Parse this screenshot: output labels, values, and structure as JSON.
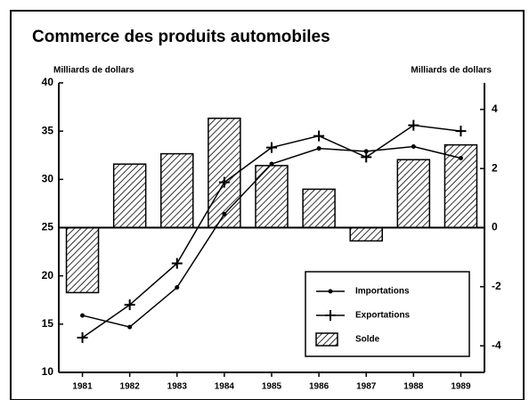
{
  "chart_data": {
    "type": "combo",
    "title": "Commerce des produits automobiles",
    "y_label": "Milliards de dollars",
    "y2_label": "Milliards de dollars",
    "categories": [
      "1981",
      "1982",
      "1983",
      "1984",
      "1985",
      "1986",
      "1987",
      "1988",
      "1989"
    ],
    "series": [
      {
        "name": "Importations",
        "type": "line",
        "marker": "dot",
        "color": "#000000",
        "values": [
          15.9,
          14.7,
          18.8,
          26.4,
          31.6,
          33.2,
          32.9,
          33.4,
          32.2
        ]
      },
      {
        "name": "Exportations",
        "type": "line",
        "marker": "plus",
        "color": "#000000",
        "values": [
          13.6,
          17.0,
          21.3,
          29.7,
          33.3,
          34.5,
          32.3,
          35.6,
          35.0
        ]
      },
      {
        "name": "Solde",
        "type": "bar",
        "axis": "y2",
        "color": "#000000",
        "values": [
          -2.2,
          2.15,
          2.5,
          3.7,
          2.1,
          1.3,
          -0.45,
          2.3,
          2.8
        ]
      }
    ],
    "ylim": [
      10,
      40
    ],
    "yticks": [
      10,
      15,
      20,
      25,
      30,
      35,
      40
    ],
    "y2lim": [
      -4.9,
      4.9
    ],
    "y2ticks": [
      -4,
      -2,
      0,
      2,
      4
    ],
    "legend": "lower right",
    "grid": false
  }
}
